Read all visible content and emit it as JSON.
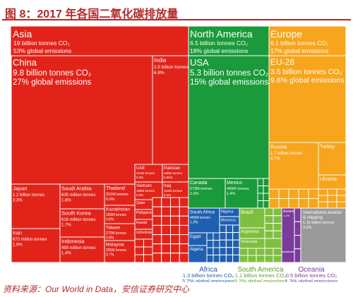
{
  "header": {
    "title": "图 8：2017 年各国二氧化碳排放量"
  },
  "footer": {
    "source": "资料来源：Our World in Data，安信证券研究中心"
  },
  "chart_data": {
    "type": "treemap",
    "unit": "billion tonnes CO₂",
    "colors": {
      "Asia": "#e2231a",
      "North America": "#1a9a3a",
      "Europe": "#f7a51c",
      "Africa": "#1f5fb0",
      "South America": "#7fbf3f",
      "Oceania": "#7b3b9a",
      "International": "#9a9a9a"
    },
    "regions": [
      {
        "name": "Asia",
        "line1": "19 billion tonnes CO₂",
        "line2": "53% global emissions",
        "countries": [
          {
            "name": "China",
            "line1": "9.8 billion tonnes CO₂",
            "line2": "27% global emissions"
          },
          {
            "name": "India",
            "line1": "2.5 billion tonnes",
            "line2": "6.8%"
          },
          {
            "name": "Japan",
            "line1": "1.2 billion tonnes",
            "line2": "3.3%"
          },
          {
            "name": "Iran",
            "line1": "672 million tonnes",
            "line2": "1.9%"
          },
          {
            "name": "Saudi Arabia",
            "line1": "635 million tonnes",
            "line2": "1.8%"
          },
          {
            "name": "South Korea",
            "line1": "616 million tonnes",
            "line2": "1.7%"
          },
          {
            "name": "Indonesia",
            "line1": "489 million tonnes",
            "line2": "1.4%"
          },
          {
            "name": "Thailand",
            "line1": "331M tonnes",
            "line2": "0.9%"
          },
          {
            "name": "Kazakhstan",
            "line1": "293M tonnes",
            "line2": "0.8%"
          },
          {
            "name": "Taiwan",
            "line1": "272M tonnes",
            "line2": "0.8%"
          },
          {
            "name": "Malaysia",
            "line1": "255M tonnes",
            "line2": "0.7%"
          },
          {
            "name": "UAE",
            "line1": "222M tonnes",
            "line2": "0.6%"
          },
          {
            "name": "Vietnam",
            "line1": "199M tonnes",
            "line2": "0.6%"
          },
          {
            "name": "Pakistan",
            "line1": "198M tonnes",
            "line2": "0.55%"
          },
          {
            "name": "Iraq",
            "line1": "154M tonnes",
            "line2": "0.4%"
          },
          {
            "name": "Qatar",
            "line1": "",
            "line2": ""
          },
          {
            "name": "Philippines",
            "line1": "",
            "line2": ""
          },
          {
            "name": "Kuwait",
            "line1": "",
            "line2": ""
          },
          {
            "name": "Uzbekistan",
            "line1": "",
            "line2": ""
          }
        ]
      },
      {
        "name": "North America",
        "line1": "6.5 billion tonnes CO₂",
        "line2": "18% global emissions",
        "countries": [
          {
            "name": "USA",
            "line1": "5.3 billion tonnes CO₂",
            "line2": "15% global emissions"
          },
          {
            "name": "Canada",
            "line1": "573M tonnes",
            "line2": "1.6%"
          },
          {
            "name": "Mexico",
            "line1": "490M tonnes",
            "line2": "1.4%"
          }
        ]
      },
      {
        "name": "Europe",
        "line1": "6.1 billion tonnes CO₂",
        "line2": "17% global emissions",
        "countries": [
          {
            "name": "EU-28",
            "line1": "3.5 billion tonnes CO₂",
            "line2": "9.8% global emissions"
          },
          {
            "name": "Russia",
            "line1": "1.7 billion tonnes",
            "line2": "4.7%"
          },
          {
            "name": "Turkey",
            "line1": "",
            "line2": ""
          },
          {
            "name": "Ukraine",
            "line1": "",
            "line2": ""
          }
        ]
      },
      {
        "name": "Africa",
        "line1": "1.3 billion tonnes CO₂",
        "line2": "3.7% global emissions",
        "countries": [
          {
            "name": "South Africa",
            "line1": "456M tonnes",
            "line2": "1.3%"
          },
          {
            "name": "Egypt",
            "line1": "",
            "line2": ""
          },
          {
            "name": "Algeria",
            "line1": "",
            "line2": ""
          },
          {
            "name": "Nigeria",
            "line1": "",
            "line2": ""
          },
          {
            "name": "Morocco",
            "line1": "",
            "line2": ""
          }
        ]
      },
      {
        "name": "South America",
        "line1": "1.1 billion tonnes CO₂",
        "line2": "3.2% global emissions",
        "countries": [
          {
            "name": "Brazil",
            "line1": "",
            "line2": ""
          },
          {
            "name": "Argentina",
            "line1": "",
            "line2": ""
          },
          {
            "name": "Venezuela",
            "line1": "",
            "line2": ""
          }
        ]
      },
      {
        "name": "Oceania",
        "line1": "0.5 billion tonnes CO₂",
        "line2": "1.3% global emissions",
        "countries": [
          {
            "name": "Australia",
            "line1": "",
            "line2": "1.1%"
          }
        ]
      },
      {
        "name": "International aviation & shipping",
        "line1": "",
        "line2": "",
        "countries": [
          {
            "name": "International aviation & shipping",
            "line1": "1.15 billion tonnes",
            "line2": "3.2%"
          }
        ]
      }
    ]
  }
}
